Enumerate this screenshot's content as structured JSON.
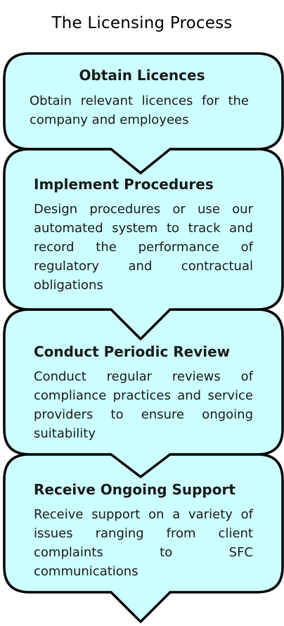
{
  "title": "The Licensing Process",
  "colors": {
    "box_fill": "#ccffff",
    "box_stroke": "#000000",
    "text": "#1a1a1a"
  },
  "steps": [
    {
      "title": "Obtain Licences",
      "description": "Obtain relevant licences for the company and employees"
    },
    {
      "title": "Implement Procedures",
      "description": "Design procedures or use our automated system to track and record the performance of regulatory and contractual obligations"
    },
    {
      "title": "Conduct Periodic Review",
      "description": "Conduct regular reviews of compliance practices and service providers to ensure ongoing suitability"
    },
    {
      "title": "Receive Ongoing Support",
      "description": "Receive support on a variety of issues ranging from client complaints to SFC communications"
    }
  ]
}
